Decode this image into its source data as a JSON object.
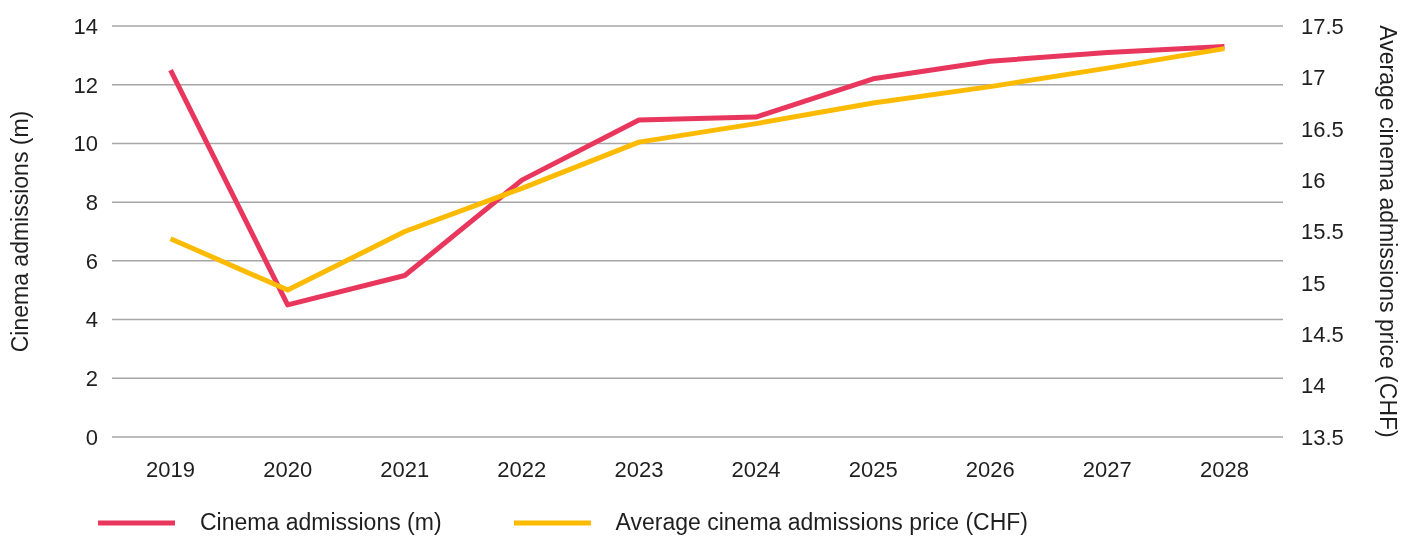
{
  "chart_data": {
    "type": "line",
    "categories": [
      "2019",
      "2020",
      "2021",
      "2022",
      "2023",
      "2024",
      "2025",
      "2026",
      "2027",
      "2028"
    ],
    "ylabel": "Cinema admissions (m)",
    "y2label": "Average cinema admissions price (CHF)",
    "series": [
      {
        "name": "Cinema admissions (m)",
        "color": "#e8365c",
        "values": [
          12.5,
          4.5,
          5.5,
          8.75,
          10.8,
          10.9,
          12.2,
          12.8,
          13.1,
          13.3
        ]
      },
      {
        "name": "Average cinema admissions price (CHF)",
        "color": "#fcbb00",
        "axis": "y2",
        "values": [
          15.43,
          14.93,
          15.5,
          15.92,
          16.37,
          16.55,
          16.75,
          16.91,
          17.09,
          17.28
        ]
      }
    ],
    "ylim": [
      0,
      14
    ],
    "yticks": [
      0,
      2,
      4,
      6,
      8,
      10,
      12,
      14
    ],
    "y2lim": [
      13.5,
      17.5
    ],
    "y2ticks": [
      13.5,
      14,
      14.5,
      15,
      15.5,
      16,
      16.5,
      17,
      17.5
    ],
    "grid": "y",
    "legend": "bottom",
    "marker": "none",
    "line_style": "solid"
  }
}
